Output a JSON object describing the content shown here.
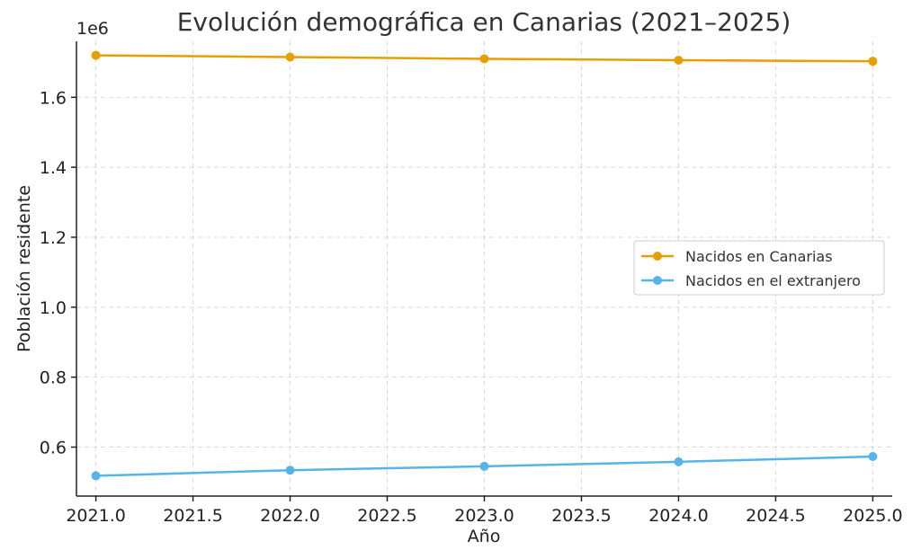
{
  "chart_data": {
    "type": "line",
    "title": "Evolución demográfica en Canarias (2021–2025)",
    "xlabel": "Año",
    "ylabel": "Población residente",
    "y_offset_label": "1e6",
    "x": [
      2021,
      2022,
      2023,
      2024,
      2025
    ],
    "xlim": [
      2020.9,
      2025.1
    ],
    "ylim": [
      0.46,
      1.76
    ],
    "x_ticks": [
      2021.0,
      2021.5,
      2022.0,
      2022.5,
      2023.0,
      2023.5,
      2024.0,
      2024.5,
      2025.0
    ],
    "x_tick_labels": [
      "2021.0",
      "2021.5",
      "2022.0",
      "2022.5",
      "2023.0",
      "2023.5",
      "2024.0",
      "2024.5",
      "2025.0"
    ],
    "y_ticks": [
      0.6,
      0.8,
      1.0,
      1.2,
      1.4,
      1.6
    ],
    "y_tick_labels": [
      "0.6",
      "0.8",
      "1.0",
      "1.2",
      "1.4",
      "1.6"
    ],
    "y_scale_note": "values in millions",
    "grid": true,
    "legend_position": "center-right",
    "series": [
      {
        "name": "Nacidos en Canarias",
        "color": "#E69F00",
        "values": [
          1.72,
          1.715,
          1.71,
          1.706,
          1.703
        ]
      },
      {
        "name": "Nacidos en el extranjero",
        "color": "#56B4E9",
        "values": [
          0.518,
          0.534,
          0.545,
          0.558,
          0.573
        ]
      }
    ]
  }
}
